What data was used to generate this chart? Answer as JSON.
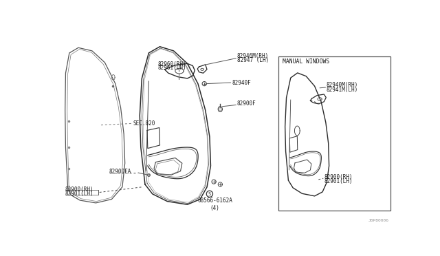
{
  "bg_color": "#ffffff",
  "line_color": "#2a2a2a",
  "gray_color": "#888888",
  "light_color": "#bbbbbb",
  "text_color": "#1a1a1a",
  "fig_width": 6.4,
  "fig_height": 3.72,
  "dpi": 100,
  "watermark": "J8P80006",
  "labels": {
    "sec820": "SEC.820",
    "82900rh": "82900(RH)",
    "82901lh": "82901(LH)",
    "82900fa": "82900FA",
    "82960rh": "82960(RH)",
    "82961lh": "82961(LH)",
    "82946mrh": "82946M(RH)",
    "82947lh": "82947 (LH)",
    "82940f": "82940F",
    "82900f": "82900F",
    "screw": "08566-6162A\n(4)",
    "manual_windows": "MANUAL WINDOWS",
    "82940mrh": "82940M(RH)",
    "82941mlh": "82941M(LH)",
    "82900rh2": "82900(RH)",
    "82901lh2": "82901(LH)"
  },
  "font_size": 5.5
}
